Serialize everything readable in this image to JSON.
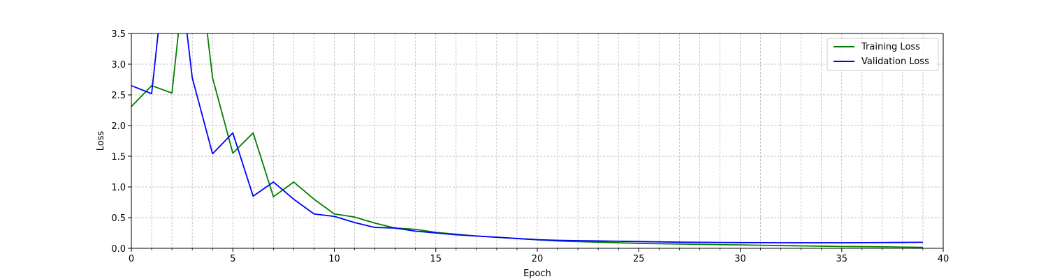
{
  "chart_data": {
    "type": "line",
    "xlabel": "Epoch",
    "ylabel": "Loss",
    "xlim": [
      0,
      40
    ],
    "ylim": [
      0,
      3.5
    ],
    "x_ticks": [
      0,
      5,
      10,
      15,
      20,
      25,
      30,
      35,
      40
    ],
    "x_minor_ticks": [
      1,
      2,
      3,
      4,
      6,
      7,
      8,
      9,
      11,
      12,
      13,
      14,
      16,
      17,
      18,
      19,
      21,
      22,
      23,
      24,
      26,
      27,
      28,
      29,
      31,
      32,
      33,
      34,
      36,
      37,
      38,
      39
    ],
    "y_ticks": [
      0.0,
      0.5,
      1.0,
      1.5,
      2.0,
      2.5,
      3.0,
      3.5
    ],
    "y_tick_labels": [
      "0.0",
      "0.5",
      "1.0",
      "1.5",
      "2.0",
      "2.5",
      "3.0",
      "3.5"
    ],
    "grid": true,
    "legend_position": "top-right",
    "x": [
      0,
      1,
      2,
      3,
      4,
      5,
      6,
      7,
      8,
      9,
      10,
      11,
      12,
      13,
      14,
      15,
      16,
      17,
      18,
      19,
      20,
      21,
      22,
      23,
      24,
      25,
      26,
      27,
      28,
      29,
      30,
      31,
      32,
      33,
      34,
      35,
      36,
      37,
      38,
      39
    ],
    "series": [
      {
        "name": "Training Loss",
        "color": "#008000",
        "values": [
          2.31,
          2.65,
          2.53,
          5.6,
          2.78,
          1.55,
          1.88,
          0.84,
          1.08,
          0.8,
          0.56,
          0.51,
          0.41,
          0.33,
          0.31,
          0.26,
          0.23,
          0.2,
          0.18,
          0.16,
          0.14,
          0.12,
          0.11,
          0.1,
          0.09,
          0.08,
          0.075,
          0.07,
          0.065,
          0.06,
          0.055,
          0.05,
          0.045,
          0.04,
          0.035,
          0.03,
          0.028,
          0.025,
          0.02,
          0.015
        ]
      },
      {
        "name": "Validation Loss",
        "color": "#0000ff",
        "values": [
          2.65,
          2.52,
          5.6,
          2.78,
          1.54,
          1.88,
          0.85,
          1.08,
          0.8,
          0.56,
          0.52,
          0.42,
          0.34,
          0.33,
          0.28,
          0.25,
          0.22,
          0.2,
          0.18,
          0.16,
          0.14,
          0.13,
          0.125,
          0.12,
          0.115,
          0.11,
          0.105,
          0.1,
          0.098,
          0.095,
          0.093,
          0.092,
          0.091,
          0.09,
          0.09,
          0.09,
          0.092,
          0.094,
          0.096,
          0.098
        ]
      }
    ]
  }
}
